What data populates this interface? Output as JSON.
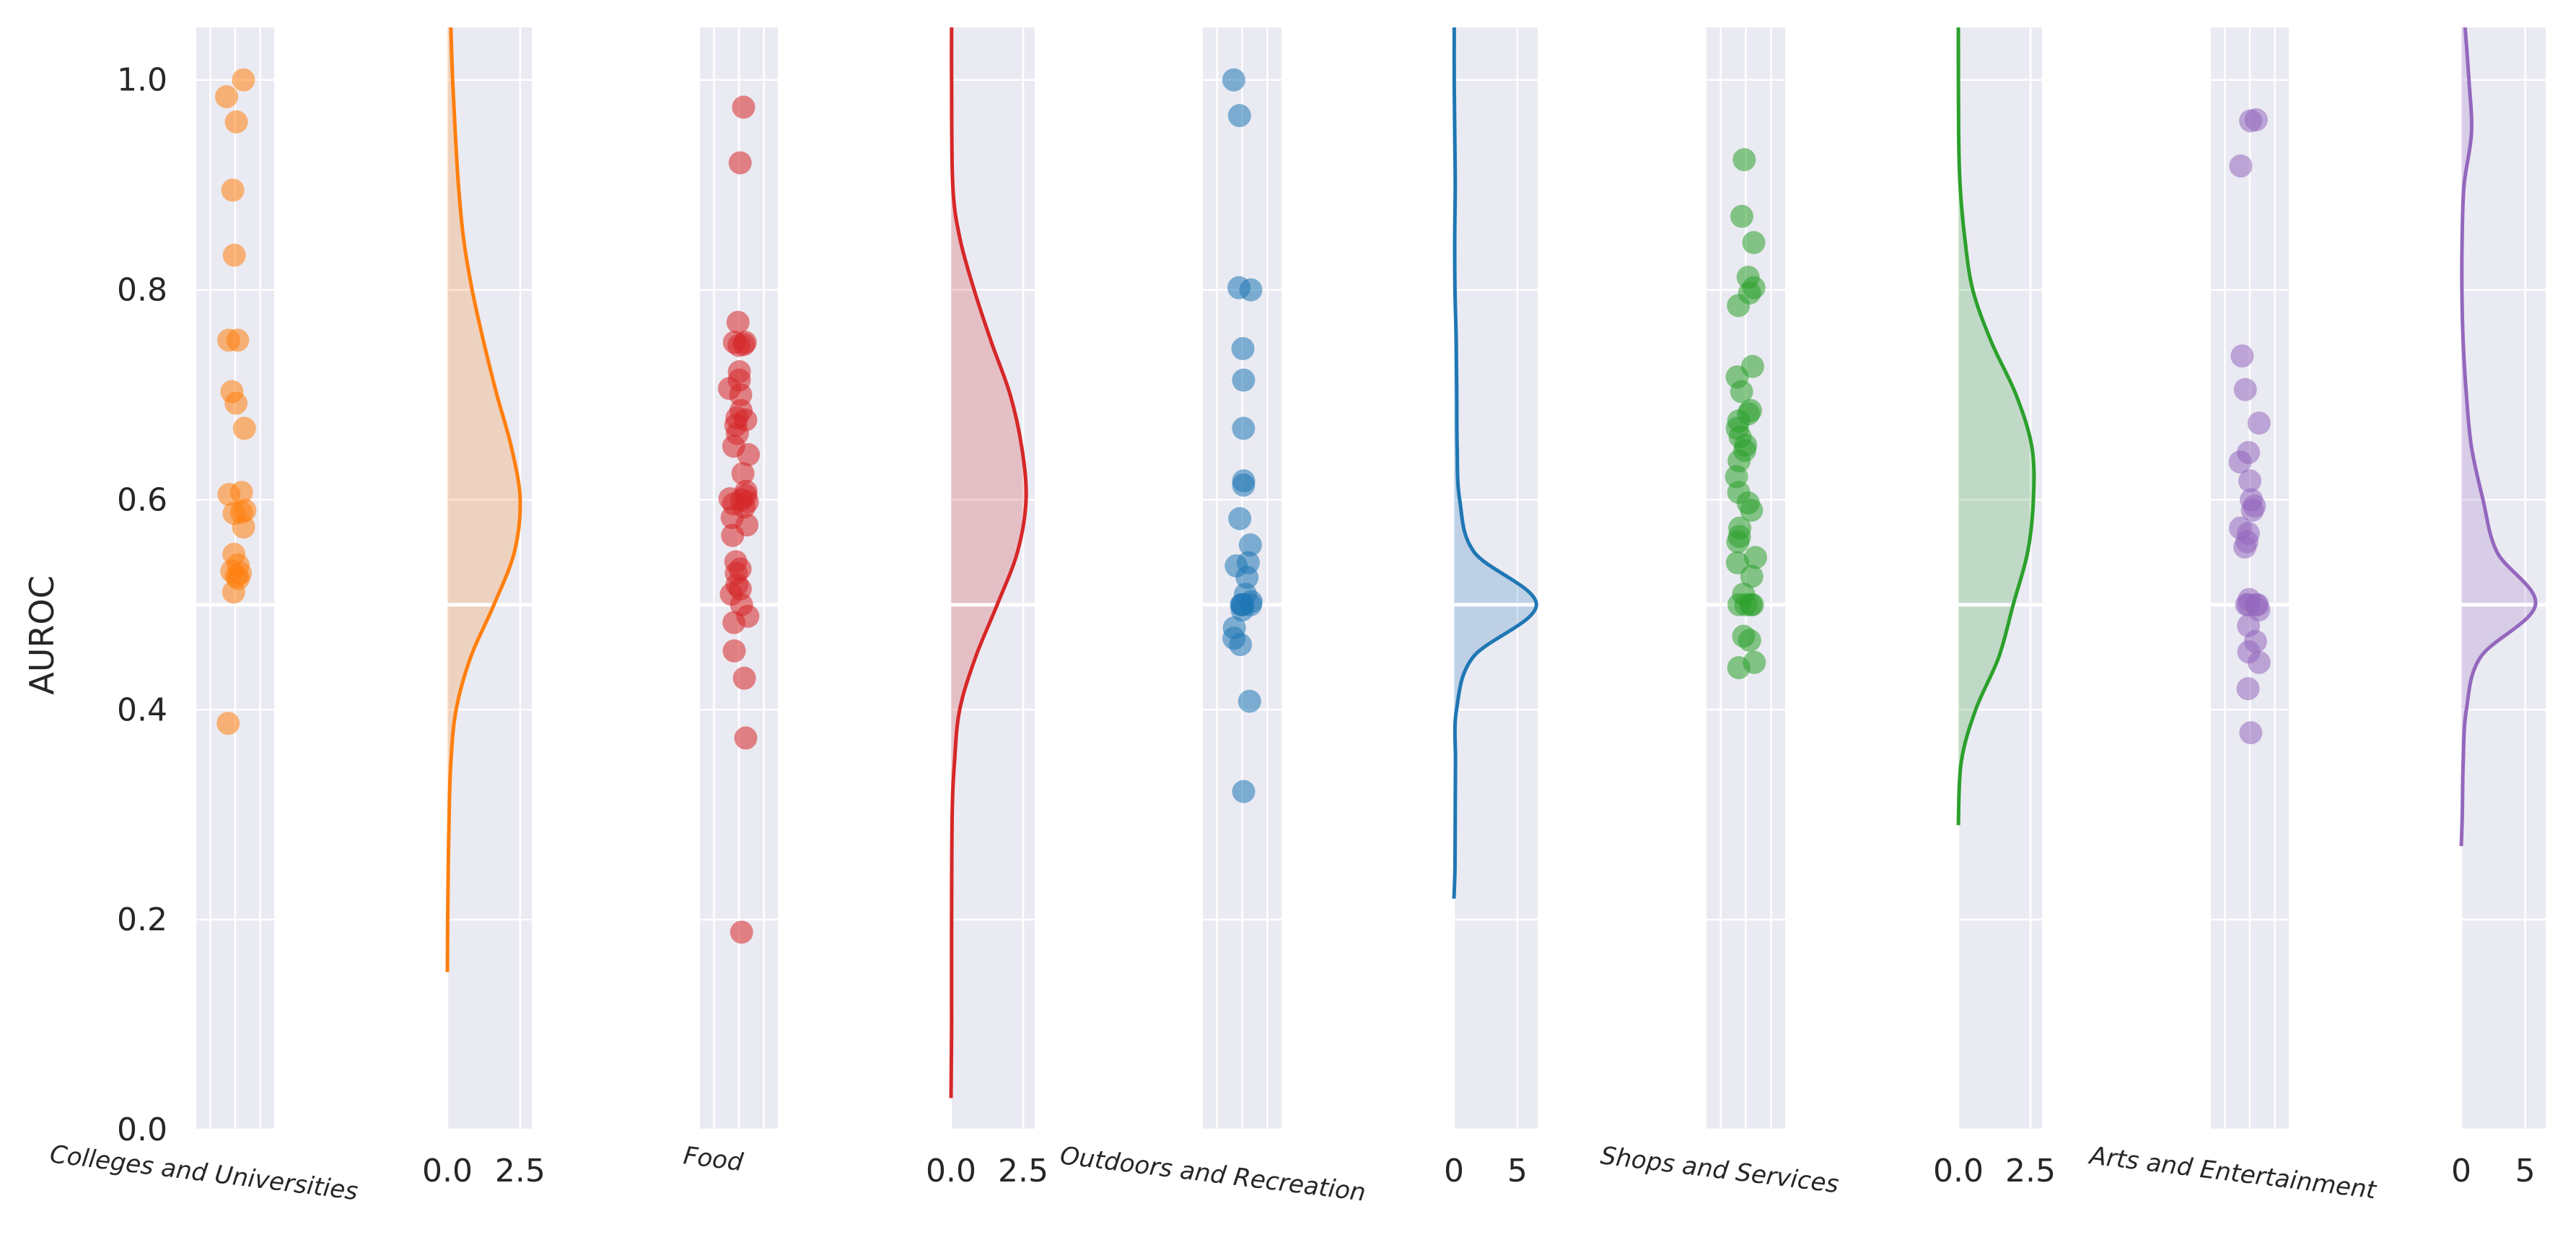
{
  "chart_data": {
    "type": "scatter",
    "description_note": "",
    "ylabel": "AUROC",
    "ylim": [
      0.0,
      1.05
    ],
    "yticks": [
      "0.0",
      "0.2",
      "0.4",
      "0.6",
      "0.8",
      "1.0"
    ],
    "reference_line_y": 0.5,
    "grid": true,
    "categories": [
      {
        "name": "Colleges and Universities",
        "color": "#ff7f0e",
        "strip_points": [
          1.0,
          0.984,
          0.96,
          0.895,
          0.833,
          0.752,
          0.752,
          0.703,
          0.692,
          0.668,
          0.607,
          0.605,
          0.59,
          0.588,
          0.587,
          0.574,
          0.548,
          0.538,
          0.532,
          0.53,
          0.527,
          0.525,
          0.512,
          0.387
        ],
        "kde_xticks": [
          "0.0",
          "2.5"
        ],
        "kde_xrange": [
          0,
          2.9
        ],
        "kde_curve": [
          [
            0.15,
            0.0
          ],
          [
            0.2,
            0.01
          ],
          [
            0.25,
            0.03
          ],
          [
            0.3,
            0.06
          ],
          [
            0.35,
            0.12
          ],
          [
            0.4,
            0.3
          ],
          [
            0.45,
            0.8
          ],
          [
            0.5,
            1.6
          ],
          [
            0.55,
            2.3
          ],
          [
            0.6,
            2.5
          ],
          [
            0.65,
            2.2
          ],
          [
            0.7,
            1.7
          ],
          [
            0.75,
            1.25
          ],
          [
            0.8,
            0.85
          ],
          [
            0.85,
            0.55
          ],
          [
            0.9,
            0.38
          ],
          [
            0.95,
            0.27
          ],
          [
            1.0,
            0.18
          ],
          [
            1.05,
            0.12
          ]
        ]
      },
      {
        "name": "Food",
        "color": "#d62728",
        "strip_points": [
          0.974,
          0.921,
          0.769,
          0.75,
          0.75,
          0.748,
          0.747,
          0.722,
          0.714,
          0.706,
          0.7,
          0.685,
          0.678,
          0.676,
          0.671,
          0.663,
          0.651,
          0.643,
          0.625,
          0.608,
          0.604,
          0.601,
          0.6,
          0.598,
          0.596,
          0.593,
          0.583,
          0.576,
          0.566,
          0.541,
          0.534,
          0.53,
          0.519,
          0.515,
          0.51,
          0.5,
          0.489,
          0.483,
          0.456,
          0.43,
          0.373,
          0.188
        ],
        "kde_xticks": [
          "0.0",
          "2.5"
        ],
        "kde_xrange": [
          0,
          2.9
        ],
        "kde_curve": [
          [
            0.03,
            0.0
          ],
          [
            0.1,
            0.02
          ],
          [
            0.2,
            0.02
          ],
          [
            0.3,
            0.04
          ],
          [
            0.35,
            0.12
          ],
          [
            0.4,
            0.3
          ],
          [
            0.45,
            0.85
          ],
          [
            0.5,
            1.6
          ],
          [
            0.55,
            2.3
          ],
          [
            0.6,
            2.6
          ],
          [
            0.65,
            2.45
          ],
          [
            0.7,
            2.05
          ],
          [
            0.75,
            1.4
          ],
          [
            0.8,
            0.8
          ],
          [
            0.85,
            0.3
          ],
          [
            0.9,
            0.06
          ],
          [
            1.0,
            0.02
          ],
          [
            1.05,
            0.02
          ]
        ]
      },
      {
        "name": "Outdoors and Recreation",
        "color": "#1f77b4",
        "strip_points": [
          1.0,
          0.966,
          0.802,
          0.8,
          0.744,
          0.714,
          0.668,
          0.618,
          0.614,
          0.582,
          0.557,
          0.54,
          0.537,
          0.526,
          0.51,
          0.503,
          0.5,
          0.5,
          0.5,
          0.5,
          0.495,
          0.478,
          0.468,
          0.462,
          0.408,
          0.322
        ],
        "kde_xticks": [
          "0",
          "5"
        ],
        "kde_xrange": [
          0,
          6.6
        ],
        "kde_curve": [
          [
            0.22,
            0.0
          ],
          [
            0.25,
            0.08
          ],
          [
            0.3,
            0.1
          ],
          [
            0.35,
            0.12
          ],
          [
            0.4,
            0.2
          ],
          [
            0.45,
            1.5
          ],
          [
            0.5,
            6.5
          ],
          [
            0.55,
            1.6
          ],
          [
            0.6,
            0.45
          ],
          [
            0.65,
            0.25
          ],
          [
            0.7,
            0.22
          ],
          [
            0.75,
            0.18
          ],
          [
            0.8,
            0.08
          ],
          [
            0.85,
            0.06
          ],
          [
            0.9,
            0.1
          ],
          [
            0.95,
            0.06
          ],
          [
            1.0,
            0.02
          ],
          [
            1.05,
            0.02
          ]
        ]
      },
      {
        "name": "Shops and Services",
        "color": "#2ca02c",
        "strip_points": [
          0.924,
          0.87,
          0.845,
          0.812,
          0.802,
          0.797,
          0.785,
          0.727,
          0.717,
          0.703,
          0.685,
          0.682,
          0.675,
          0.668,
          0.66,
          0.652,
          0.647,
          0.637,
          0.622,
          0.607,
          0.597,
          0.59,
          0.573,
          0.565,
          0.56,
          0.545,
          0.54,
          0.527,
          0.51,
          0.5,
          0.5,
          0.5,
          0.5,
          0.47,
          0.466,
          0.445,
          0.44
        ],
        "kde_xticks": [
          "0.0",
          "2.5"
        ],
        "kde_xrange": [
          0,
          2.9
        ],
        "kde_curve": [
          [
            0.29,
            0.0
          ],
          [
            0.35,
            0.1
          ],
          [
            0.4,
            0.6
          ],
          [
            0.45,
            1.4
          ],
          [
            0.5,
            1.9
          ],
          [
            0.55,
            2.4
          ],
          [
            0.6,
            2.6
          ],
          [
            0.65,
            2.55
          ],
          [
            0.7,
            2.0
          ],
          [
            0.75,
            1.15
          ],
          [
            0.8,
            0.5
          ],
          [
            0.85,
            0.22
          ],
          [
            0.9,
            0.06
          ],
          [
            0.95,
            0.01
          ],
          [
            1.05,
            0.0
          ]
        ]
      },
      {
        "name": "Arts and Entertainment",
        "color": "#9467bd",
        "strip_points": [
          0.962,
          0.961,
          0.918,
          0.737,
          0.705,
          0.673,
          0.645,
          0.636,
          0.618,
          0.6,
          0.594,
          0.59,
          0.573,
          0.568,
          0.56,
          0.555,
          0.505,
          0.5,
          0.5,
          0.5,
          0.5,
          0.495,
          0.48,
          0.465,
          0.455,
          0.445,
          0.42,
          0.378
        ],
        "kde_xticks": [
          "0",
          "5"
        ],
        "kde_xrange": [
          0,
          6.6
        ],
        "kde_curve": [
          [
            0.27,
            0.0
          ],
          [
            0.3,
            0.08
          ],
          [
            0.35,
            0.15
          ],
          [
            0.4,
            0.4
          ],
          [
            0.45,
            1.5
          ],
          [
            0.5,
            5.8
          ],
          [
            0.55,
            2.8
          ],
          [
            0.6,
            1.7
          ],
          [
            0.65,
            0.8
          ],
          [
            0.7,
            0.4
          ],
          [
            0.75,
            0.15
          ],
          [
            0.8,
            0.05
          ],
          [
            0.85,
            0.07
          ],
          [
            0.9,
            0.22
          ],
          [
            0.95,
            0.8
          ],
          [
            1.0,
            0.6
          ],
          [
            1.05,
            0.3
          ]
        ]
      }
    ]
  }
}
